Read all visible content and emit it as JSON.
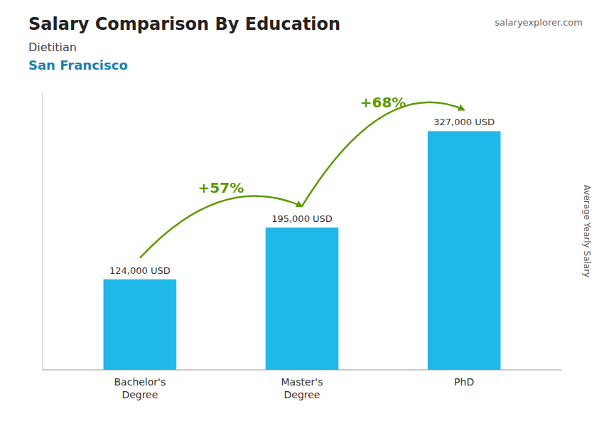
{
  "chart_data": {
    "type": "bar",
    "title": "Salary Comparison By Education",
    "subtitle": [
      "Dietitian",
      "San Francisco"
    ],
    "source": "salaryexplorer.com",
    "ylabel": "Average Yearly Salary",
    "categories": [
      "Bachelor's\nDegree",
      "Master's\nDegree",
      "PhD"
    ],
    "values": [
      124000,
      195000,
      327000
    ],
    "value_labels": [
      "124,000 USD",
      "195,000 USD",
      "327,000 USD"
    ],
    "data_labels": true,
    "color": "#20b8e8",
    "ylim": [
      0,
      380000
    ],
    "tick_labels": "x",
    "annotations": [
      {
        "text": "+57%"
      },
      {
        "text": "+68%"
      }
    ]
  }
}
